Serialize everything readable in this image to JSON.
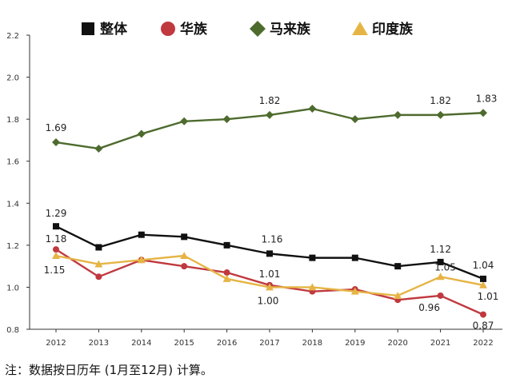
{
  "chart_data": {
    "type": "line",
    "categories": [
      "2012",
      "2013",
      "2014",
      "2015",
      "2016",
      "2017",
      "2018",
      "2019",
      "2020",
      "2021",
      "2022"
    ],
    "ylim": [
      0.8,
      2.2
    ],
    "yticks": [
      "0.8",
      "1.0",
      "1.2",
      "1.4",
      "1.6",
      "1.8",
      "2.0",
      "2.2"
    ],
    "grid": false,
    "legend_position": "top",
    "series": [
      {
        "name": "整体",
        "color": "#111111",
        "marker": "square",
        "values": [
          1.29,
          1.19,
          1.25,
          1.24,
          1.2,
          1.16,
          1.14,
          1.14,
          1.1,
          1.12,
          1.04
        ]
      },
      {
        "name": "华族",
        "color": "#c0393f",
        "marker": "circle",
        "values": [
          1.18,
          1.05,
          1.13,
          1.1,
          1.07,
          1.01,
          0.98,
          0.99,
          0.94,
          0.96,
          0.87
        ]
      },
      {
        "name": "马来族",
        "color": "#4e6b2e",
        "marker": "diamond",
        "values": [
          1.69,
          1.66,
          1.73,
          1.79,
          1.8,
          1.82,
          1.85,
          1.8,
          1.82,
          1.82,
          1.83
        ]
      },
      {
        "name": "印度族",
        "color": "#e6b445",
        "marker": "triangle",
        "values": [
          1.15,
          1.11,
          1.13,
          1.15,
          1.04,
          1.0,
          1.0,
          0.98,
          0.96,
          1.05,
          1.01
        ]
      }
    ],
    "data_labels": [
      {
        "series": 2,
        "index": 0,
        "text": "1.69"
      },
      {
        "series": 2,
        "index": 5,
        "text": "1.82"
      },
      {
        "series": 2,
        "index": 9,
        "text": "1.82"
      },
      {
        "series": 2,
        "index": 10,
        "text": "1.83"
      },
      {
        "series": 0,
        "index": 0,
        "text": "1.29"
      },
      {
        "series": 1,
        "index": 0,
        "text": "1.18"
      },
      {
        "series": 3,
        "index": 0,
        "text": "1.15"
      },
      {
        "series": 0,
        "index": 5,
        "text": "1.16"
      },
      {
        "series": 1,
        "index": 5,
        "text": "1.01"
      },
      {
        "series": 3,
        "index": 5,
        "text": "1.00"
      },
      {
        "series": 0,
        "index": 9,
        "text": "1.12"
      },
      {
        "series": 3,
        "index": 9,
        "text": "1.05"
      },
      {
        "series": 1,
        "index": 9,
        "text": "0.96"
      },
      {
        "series": 0,
        "index": 10,
        "text": "1.04"
      },
      {
        "series": 3,
        "index": 10,
        "text": "1.01"
      },
      {
        "series": 1,
        "index": 10,
        "text": "0.87"
      }
    ]
  },
  "footnote": "注：数据按日历年 (1月至12月) 计算。"
}
